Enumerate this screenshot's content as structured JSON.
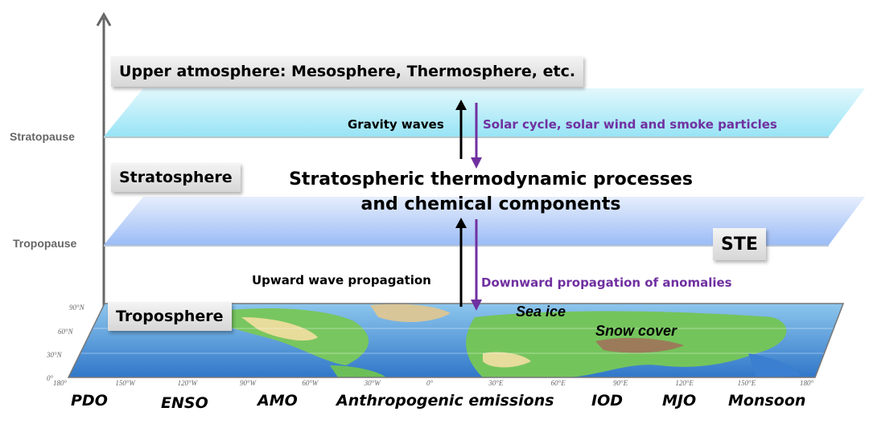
{
  "axis": {
    "labels": {
      "stratopause": "Stratopause",
      "tropopause": "Tropopause"
    }
  },
  "layers": {
    "upper": "Upper atmosphere: Mesosphere, Thermosphere, etc.",
    "stratosphere": "Stratosphere",
    "troposphere": "Troposphere",
    "ste": "STE"
  },
  "center": {
    "line1": "Stratospheric thermodynamic processes",
    "line2": "and chemical components"
  },
  "arrows": {
    "gravity": "Gravity waves",
    "solar": "Solar cycle, solar wind and smoke particles",
    "upward": "Upward wave propagation",
    "downward": "Downward propagation of anomalies"
  },
  "map": {
    "labels": {
      "sea_ice": "Sea ice",
      "snow": "Snow cover"
    },
    "lat_ticks": [
      "90°N",
      "60°N",
      "30°N",
      "0°"
    ],
    "lon_ticks": [
      "180°",
      "150°W",
      "120°W",
      "90°W",
      "60°W",
      "30°W",
      "0°",
      "30°E",
      "60°E",
      "90°E",
      "120°E",
      "150°E",
      "180°"
    ]
  },
  "drivers": [
    "PDO",
    "ENSO",
    "AMO",
    "Anthropogenic emissions",
    "IOD",
    "MJO",
    "Monsoon"
  ],
  "colors": {
    "purple": "#7030a0",
    "upper_plane": "#9fe6f6",
    "lower_plane": "#a8c4f8",
    "ocean": "#3a7fd0",
    "land": "#6cc25a"
  }
}
